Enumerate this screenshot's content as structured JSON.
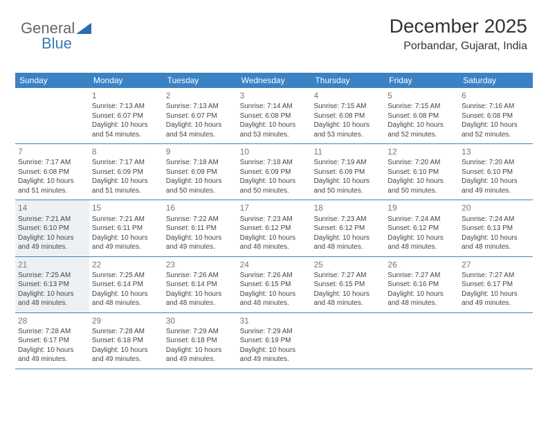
{
  "brand": {
    "part1": "General",
    "part2": "Blue"
  },
  "title": "December 2025",
  "location": "Porbandar, Gujarat, India",
  "colors": {
    "header_bg": "#3a82c4",
    "header_text": "#ffffff",
    "shaded_bg": "#eef1f4",
    "border": "#3a82c4",
    "text": "#444444",
    "daynum": "#777777"
  },
  "dayNames": [
    "Sunday",
    "Monday",
    "Tuesday",
    "Wednesday",
    "Thursday",
    "Friday",
    "Saturday"
  ],
  "weeks": [
    [
      {
        "day": "",
        "shaded": false
      },
      {
        "day": "1",
        "shaded": false,
        "sunrise": "Sunrise: 7:13 AM",
        "sunset": "Sunset: 6:07 PM",
        "daylight1": "Daylight: 10 hours",
        "daylight2": "and 54 minutes."
      },
      {
        "day": "2",
        "shaded": false,
        "sunrise": "Sunrise: 7:13 AM",
        "sunset": "Sunset: 6:07 PM",
        "daylight1": "Daylight: 10 hours",
        "daylight2": "and 54 minutes."
      },
      {
        "day": "3",
        "shaded": false,
        "sunrise": "Sunrise: 7:14 AM",
        "sunset": "Sunset: 6:08 PM",
        "daylight1": "Daylight: 10 hours",
        "daylight2": "and 53 minutes."
      },
      {
        "day": "4",
        "shaded": false,
        "sunrise": "Sunrise: 7:15 AM",
        "sunset": "Sunset: 6:08 PM",
        "daylight1": "Daylight: 10 hours",
        "daylight2": "and 53 minutes."
      },
      {
        "day": "5",
        "shaded": false,
        "sunrise": "Sunrise: 7:15 AM",
        "sunset": "Sunset: 6:08 PM",
        "daylight1": "Daylight: 10 hours",
        "daylight2": "and 52 minutes."
      },
      {
        "day": "6",
        "shaded": false,
        "sunrise": "Sunrise: 7:16 AM",
        "sunset": "Sunset: 6:08 PM",
        "daylight1": "Daylight: 10 hours",
        "daylight2": "and 52 minutes."
      }
    ],
    [
      {
        "day": "7",
        "shaded": false,
        "sunrise": "Sunrise: 7:17 AM",
        "sunset": "Sunset: 6:08 PM",
        "daylight1": "Daylight: 10 hours",
        "daylight2": "and 51 minutes."
      },
      {
        "day": "8",
        "shaded": false,
        "sunrise": "Sunrise: 7:17 AM",
        "sunset": "Sunset: 6:09 PM",
        "daylight1": "Daylight: 10 hours",
        "daylight2": "and 51 minutes."
      },
      {
        "day": "9",
        "shaded": false,
        "sunrise": "Sunrise: 7:18 AM",
        "sunset": "Sunset: 6:09 PM",
        "daylight1": "Daylight: 10 hours",
        "daylight2": "and 50 minutes."
      },
      {
        "day": "10",
        "shaded": false,
        "sunrise": "Sunrise: 7:18 AM",
        "sunset": "Sunset: 6:09 PM",
        "daylight1": "Daylight: 10 hours",
        "daylight2": "and 50 minutes."
      },
      {
        "day": "11",
        "shaded": false,
        "sunrise": "Sunrise: 7:19 AM",
        "sunset": "Sunset: 6:09 PM",
        "daylight1": "Daylight: 10 hours",
        "daylight2": "and 50 minutes."
      },
      {
        "day": "12",
        "shaded": false,
        "sunrise": "Sunrise: 7:20 AM",
        "sunset": "Sunset: 6:10 PM",
        "daylight1": "Daylight: 10 hours",
        "daylight2": "and 50 minutes."
      },
      {
        "day": "13",
        "shaded": false,
        "sunrise": "Sunrise: 7:20 AM",
        "sunset": "Sunset: 6:10 PM",
        "daylight1": "Daylight: 10 hours",
        "daylight2": "and 49 minutes."
      }
    ],
    [
      {
        "day": "14",
        "shaded": true,
        "sunrise": "Sunrise: 7:21 AM",
        "sunset": "Sunset: 6:10 PM",
        "daylight1": "Daylight: 10 hours",
        "daylight2": "and 49 minutes."
      },
      {
        "day": "15",
        "shaded": false,
        "sunrise": "Sunrise: 7:21 AM",
        "sunset": "Sunset: 6:11 PM",
        "daylight1": "Daylight: 10 hours",
        "daylight2": "and 49 minutes."
      },
      {
        "day": "16",
        "shaded": false,
        "sunrise": "Sunrise: 7:22 AM",
        "sunset": "Sunset: 6:11 PM",
        "daylight1": "Daylight: 10 hours",
        "daylight2": "and 49 minutes."
      },
      {
        "day": "17",
        "shaded": false,
        "sunrise": "Sunrise: 7:23 AM",
        "sunset": "Sunset: 6:12 PM",
        "daylight1": "Daylight: 10 hours",
        "daylight2": "and 48 minutes."
      },
      {
        "day": "18",
        "shaded": false,
        "sunrise": "Sunrise: 7:23 AM",
        "sunset": "Sunset: 6:12 PM",
        "daylight1": "Daylight: 10 hours",
        "daylight2": "and 48 minutes."
      },
      {
        "day": "19",
        "shaded": false,
        "sunrise": "Sunrise: 7:24 AM",
        "sunset": "Sunset: 6:12 PM",
        "daylight1": "Daylight: 10 hours",
        "daylight2": "and 48 minutes."
      },
      {
        "day": "20",
        "shaded": false,
        "sunrise": "Sunrise: 7:24 AM",
        "sunset": "Sunset: 6:13 PM",
        "daylight1": "Daylight: 10 hours",
        "daylight2": "and 48 minutes."
      }
    ],
    [
      {
        "day": "21",
        "shaded": true,
        "sunrise": "Sunrise: 7:25 AM",
        "sunset": "Sunset: 6:13 PM",
        "daylight1": "Daylight: 10 hours",
        "daylight2": "and 48 minutes."
      },
      {
        "day": "22",
        "shaded": false,
        "sunrise": "Sunrise: 7:25 AM",
        "sunset": "Sunset: 6:14 PM",
        "daylight1": "Daylight: 10 hours",
        "daylight2": "and 48 minutes."
      },
      {
        "day": "23",
        "shaded": false,
        "sunrise": "Sunrise: 7:26 AM",
        "sunset": "Sunset: 6:14 PM",
        "daylight1": "Daylight: 10 hours",
        "daylight2": "and 48 minutes."
      },
      {
        "day": "24",
        "shaded": false,
        "sunrise": "Sunrise: 7:26 AM",
        "sunset": "Sunset: 6:15 PM",
        "daylight1": "Daylight: 10 hours",
        "daylight2": "and 48 minutes."
      },
      {
        "day": "25",
        "shaded": false,
        "sunrise": "Sunrise: 7:27 AM",
        "sunset": "Sunset: 6:15 PM",
        "daylight1": "Daylight: 10 hours",
        "daylight2": "and 48 minutes."
      },
      {
        "day": "26",
        "shaded": false,
        "sunrise": "Sunrise: 7:27 AM",
        "sunset": "Sunset: 6:16 PM",
        "daylight1": "Daylight: 10 hours",
        "daylight2": "and 48 minutes."
      },
      {
        "day": "27",
        "shaded": false,
        "sunrise": "Sunrise: 7:27 AM",
        "sunset": "Sunset: 6:17 PM",
        "daylight1": "Daylight: 10 hours",
        "daylight2": "and 49 minutes."
      }
    ],
    [
      {
        "day": "28",
        "shaded": false,
        "sunrise": "Sunrise: 7:28 AM",
        "sunset": "Sunset: 6:17 PM",
        "daylight1": "Daylight: 10 hours",
        "daylight2": "and 49 minutes."
      },
      {
        "day": "29",
        "shaded": false,
        "sunrise": "Sunrise: 7:28 AM",
        "sunset": "Sunset: 6:18 PM",
        "daylight1": "Daylight: 10 hours",
        "daylight2": "and 49 minutes."
      },
      {
        "day": "30",
        "shaded": false,
        "sunrise": "Sunrise: 7:29 AM",
        "sunset": "Sunset: 6:18 PM",
        "daylight1": "Daylight: 10 hours",
        "daylight2": "and 49 minutes."
      },
      {
        "day": "31",
        "shaded": false,
        "sunrise": "Sunrise: 7:29 AM",
        "sunset": "Sunset: 6:19 PM",
        "daylight1": "Daylight: 10 hours",
        "daylight2": "and 49 minutes."
      },
      {
        "day": "",
        "shaded": false
      },
      {
        "day": "",
        "shaded": false
      },
      {
        "day": "",
        "shaded": false
      }
    ]
  ]
}
